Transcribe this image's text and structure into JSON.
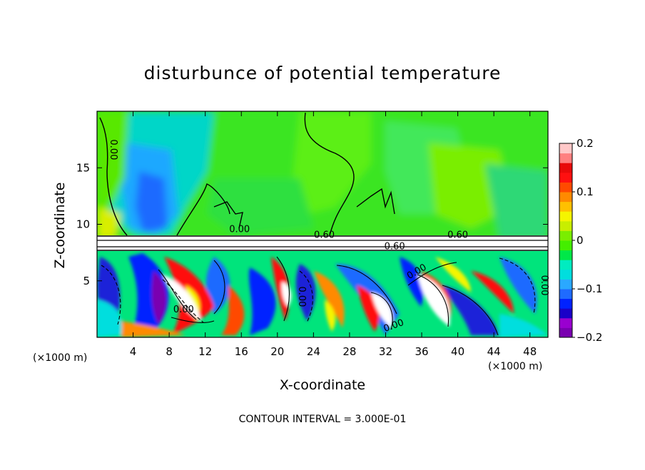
{
  "chart_data": {
    "type": "heatmap",
    "title": "disturbunce of potential temperature",
    "xlabel": "X-coordinate",
    "ylabel": "Z-coordinate",
    "x_unit": "(×1000 m)",
    "z_unit": "(×1000 m)",
    "xlim": [
      0,
      50
    ],
    "ylim": [
      0,
      20
    ],
    "x_ticks": [
      4,
      8,
      12,
      16,
      20,
      24,
      28,
      32,
      36,
      40,
      44,
      48
    ],
    "x_tick_labels": [
      "4",
      "8",
      "12",
      "16",
      "20",
      "24",
      "28",
      "32",
      "36",
      "40",
      "44",
      "48"
    ],
    "y_ticks": [
      5,
      10,
      15
    ],
    "y_tick_labels": [
      "5",
      "10",
      "15"
    ],
    "colorbar": {
      "range": [
        -0.2,
        0.2
      ],
      "ticks": [
        0.2,
        0.1,
        0,
        -0.1,
        -0.2
      ],
      "tick_labels": [
        "0.2",
        "0.1",
        "0",
        "−0.1",
        "−0.2"
      ],
      "colors": [
        "#7a00b0",
        "#9a00d0",
        "#1a00c8",
        "#0022ff",
        "#1f6bff",
        "#2aa8ff",
        "#00dede",
        "#00ecc0",
        "#00e848",
        "#44ee00",
        "#7aee00",
        "#c8ee00",
        "#f5f500",
        "#ffc000",
        "#ff8a00",
        "#ff4a00",
        "#ff1010",
        "#e80a0a",
        "#ff8080",
        "#ffc8c8"
      ]
    },
    "contour_interval": "CONTOUR INTERVAL = 3.000E-01",
    "contour_labels": [
      {
        "text": "0.00",
        "x": 1.5,
        "z": 16.6,
        "rotate": 90
      },
      {
        "text": "0.00",
        "x": 15.8,
        "z": 9.3,
        "rotate": 0
      },
      {
        "text": "0.60",
        "x": 25.2,
        "z": 8.8,
        "rotate": 0
      },
      {
        "text": "0.60",
        "x": 40.0,
        "z": 8.8,
        "rotate": 0
      },
      {
        "text": "0.60",
        "x": 33.0,
        "z": 7.8,
        "rotate": 0
      },
      {
        "text": "0.00",
        "x": 35.6,
        "z": 5.6,
        "rotate": -30
      },
      {
        "text": "0.00",
        "x": 9.6,
        "z": 2.2,
        "rotate": 0
      },
      {
        "text": "0.00",
        "x": 22.4,
        "z": 3.6,
        "rotate": 90
      },
      {
        "text": "0.00",
        "x": 33.0,
        "z": 0.8,
        "rotate": -20
      },
      {
        "text": "0.00",
        "x": 49.3,
        "z": 4.6,
        "rotate": 90
      }
    ],
    "regions": [
      {
        "name": "upper-layer",
        "dominant_value": 0.02
      },
      {
        "name": "lower-layer",
        "dominant_value_range": [
          -0.2,
          0.2
        ]
      }
    ]
  }
}
